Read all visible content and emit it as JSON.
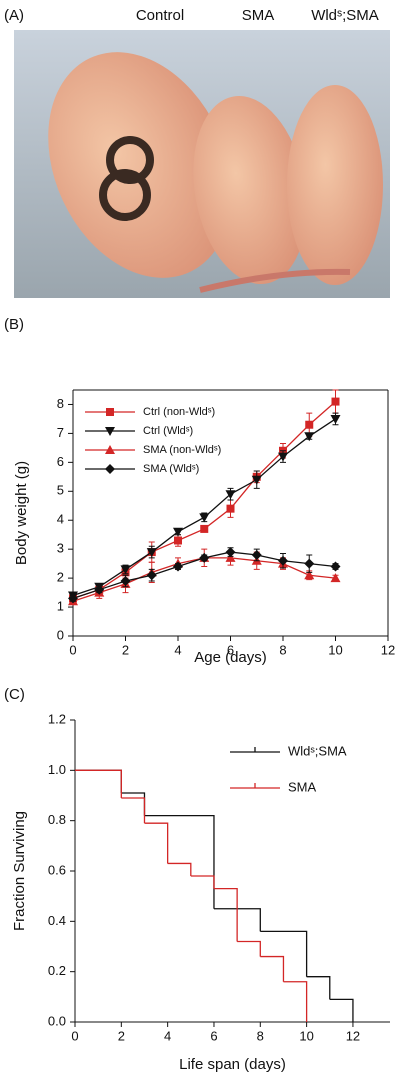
{
  "panel_a": {
    "label": "(A)",
    "pup_labels": [
      "Control",
      "SMA",
      "Wldˢ;SMA"
    ]
  },
  "chart_data": [
    {
      "type": "line",
      "panel_label": "(B)",
      "x_label": "Age (days)",
      "y_label": "Body weight (g)",
      "x": [
        0,
        1,
        2,
        3,
        4,
        5,
        6,
        7,
        8,
        9,
        10
      ],
      "series": [
        {
          "name": "Ctrl (non-Wldˢ)",
          "color": "#d32626",
          "marker": "square",
          "values": [
            1.3,
            1.6,
            2.2,
            2.9,
            3.3,
            3.7,
            4.4,
            5.5,
            6.4,
            7.3,
            8.1
          ],
          "errors": [
            0.1,
            0.1,
            0.2,
            0.35,
            0.2,
            0.1,
            0.3,
            0.2,
            0.25,
            0.4,
            0.4
          ]
        },
        {
          "name": "Ctrl (Wldˢ)",
          "color": "#111111",
          "marker": "down-triangle",
          "values": [
            1.4,
            1.7,
            2.3,
            2.9,
            3.6,
            4.1,
            4.9,
            5.4,
            6.2,
            6.9,
            7.5
          ],
          "errors": [
            0.1,
            0.1,
            0.15,
            0.2,
            0.1,
            0.15,
            0.2,
            0.3,
            0.2,
            0.1,
            0.2
          ]
        },
        {
          "name": "SMA (non-Wldˢ)",
          "color": "#d32626",
          "marker": "up-triangle",
          "values": [
            1.2,
            1.5,
            1.8,
            2.2,
            2.5,
            2.7,
            2.7,
            2.6,
            2.5,
            2.1,
            2.0
          ],
          "errors": [
            0.1,
            0.2,
            0.3,
            0.35,
            0.2,
            0.3,
            0.25,
            0.3,
            0.2,
            0.15,
            0.1
          ]
        },
        {
          "name": "SMA (Wldˢ)",
          "color": "#111111",
          "marker": "diamond",
          "values": [
            1.3,
            1.6,
            1.9,
            2.1,
            2.4,
            2.7,
            2.9,
            2.8,
            2.6,
            2.5,
            2.4
          ],
          "errors": [
            0.1,
            0.1,
            0.2,
            0.2,
            0.1,
            0.1,
            0.15,
            0.2,
            0.25,
            0.3,
            0.1
          ]
        }
      ],
      "xlim": [
        0,
        12
      ],
      "xticks": [
        0,
        2,
        4,
        6,
        8,
        10,
        12
      ],
      "ylim": [
        0,
        8.5
      ],
      "yticks": [
        0,
        1,
        2,
        3,
        4,
        5,
        6,
        7,
        8
      ],
      "legend": "upper left"
    },
    {
      "type": "step",
      "panel_label": "(C)",
      "x_label": "Life span (days)",
      "y_label": "Fraction Surviving",
      "series": [
        {
          "name": "Wldˢ;SMA",
          "color": "#111111",
          "x": [
            0,
            2,
            3,
            6,
            8,
            10,
            11,
            12
          ],
          "values": [
            1,
            0.91,
            0.82,
            0.45,
            0.36,
            0.18,
            0.09,
            0
          ]
        },
        {
          "name": "SMA",
          "color": "#d32626",
          "x": [
            0,
            2,
            3,
            4,
            5,
            6,
            7,
            8,
            9,
            10
          ],
          "values": [
            1,
            0.89,
            0.79,
            0.63,
            0.58,
            0.53,
            0.32,
            0.26,
            0.16,
            0
          ]
        }
      ],
      "xlim": [
        0,
        13.6
      ],
      "xticks": [
        0,
        2,
        4,
        6,
        8,
        10,
        12
      ],
      "ylim": [
        0,
        1.2
      ],
      "yticks": [
        {
          "value": 0,
          "label": "0.0"
        },
        {
          "value": 0.2,
          "label": "0.2"
        },
        {
          "value": 0.4,
          "label": "0.4"
        },
        {
          "value": 0.6,
          "label": "0.6"
        },
        {
          "value": 0.8,
          "label": "0.8"
        },
        {
          "value": 1,
          "label": "1.0"
        },
        {
          "value": 1.2,
          "label": "1.2"
        }
      ],
      "legend": "upper right"
    }
  ]
}
